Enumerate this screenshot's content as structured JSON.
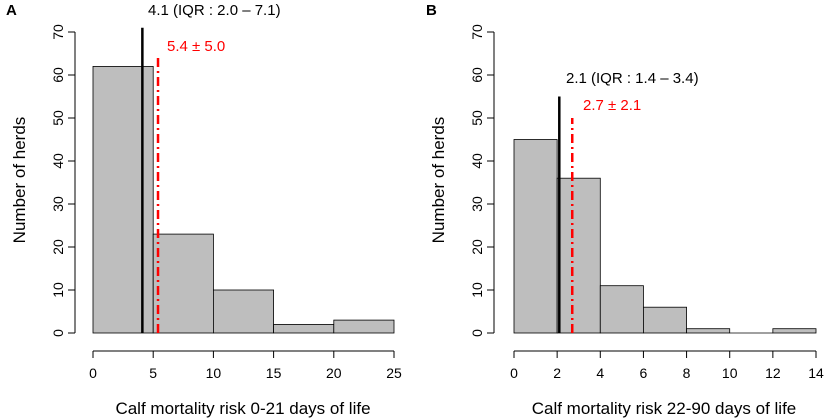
{
  "chart_data": [
    {
      "panel_label": "A",
      "type": "bar",
      "subtype": "histogram",
      "bins": [
        [
          0,
          5
        ],
        [
          5,
          10
        ],
        [
          10,
          15
        ],
        [
          15,
          20
        ],
        [
          20,
          25
        ]
      ],
      "values": [
        62,
        23,
        10,
        2,
        3
      ],
      "xlabel": "Calf mortality risk 0-21 days of life",
      "ylabel": "Number of herds",
      "xlim": [
        0,
        25
      ],
      "ylim": [
        0,
        70
      ],
      "xticks": [
        "0",
        "5",
        "10",
        "15",
        "20",
        "25"
      ],
      "yticks": [
        "0",
        "10",
        "20",
        "30",
        "40",
        "50",
        "60",
        "70"
      ],
      "median": {
        "value": 4.1,
        "label": "4.1 (IQR : 2.0 – 7.1)",
        "color": "#000000",
        "line_top": 71
      },
      "mean": {
        "value": 5.4,
        "label": "5.4 ± 5.0",
        "color": "#ff0000",
        "line_top": 64
      },
      "bar_color": "#bebebe"
    },
    {
      "panel_label": "B",
      "type": "bar",
      "subtype": "histogram",
      "bins": [
        [
          0,
          2
        ],
        [
          2,
          4
        ],
        [
          4,
          6
        ],
        [
          6,
          8
        ],
        [
          8,
          10
        ],
        [
          10,
          12
        ],
        [
          12,
          14
        ]
      ],
      "values": [
        45,
        36,
        11,
        6,
        1,
        0,
        1
      ],
      "xlabel": "Calf mortality risk 22-90 days of life",
      "ylabel": "Number of herds",
      "xlim": [
        0,
        14
      ],
      "ylim": [
        0,
        70
      ],
      "xticks": [
        "0",
        "2",
        "4",
        "6",
        "8",
        "10",
        "12",
        "14"
      ],
      "yticks": [
        "0",
        "10",
        "20",
        "30",
        "40",
        "50",
        "60",
        "70"
      ],
      "median": {
        "value": 2.1,
        "label": "2.1 (IQR : 1.4 – 3.4)",
        "color": "#000000",
        "line_top": 55
      },
      "mean": {
        "value": 2.7,
        "label": "2.7 ± 2.1",
        "color": "#ff0000",
        "line_top": 50
      },
      "bar_color": "#bebebe"
    }
  ]
}
